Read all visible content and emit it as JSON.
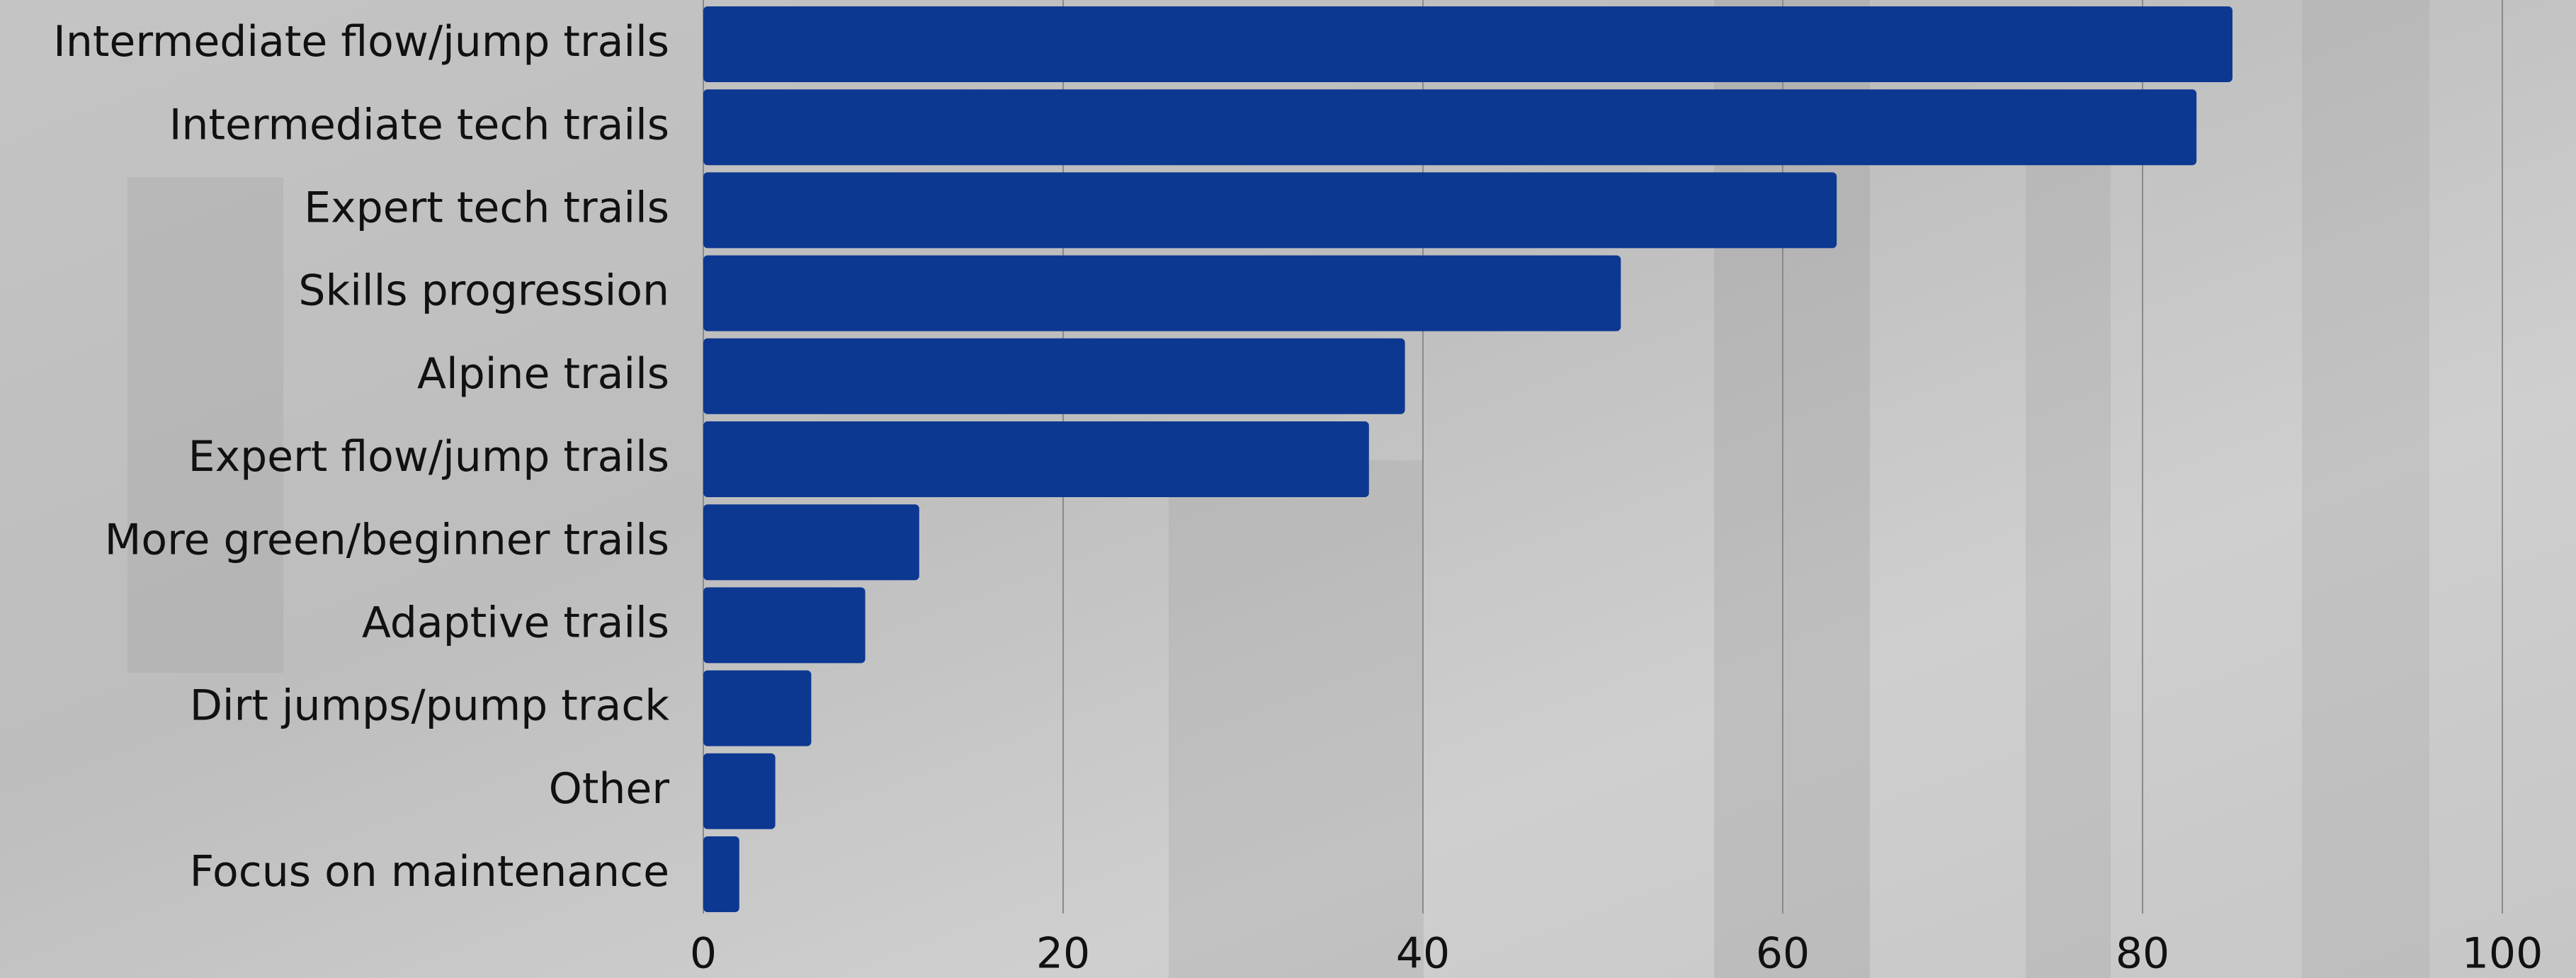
{
  "chart_data": {
    "type": "hbar",
    "categories": [
      "Intermediate flow/jump trails",
      "Intermediate tech trails",
      "Expert tech trails",
      "Skills progression",
      "Alpine trails",
      "Expert flow/jump trails",
      "More green/beginner trails",
      "Adaptive trails",
      "Dirt jumps/pump track",
      "Other",
      "Focus on maintenance"
    ],
    "values": [
      85,
      83,
      63,
      51,
      39,
      37,
      12,
      9,
      6,
      4,
      2
    ],
    "color": "#0d3891",
    "xlim": [
      0,
      100
    ],
    "xticks": [
      0,
      20,
      40,
      60,
      80,
      100
    ],
    "grid": true
  }
}
